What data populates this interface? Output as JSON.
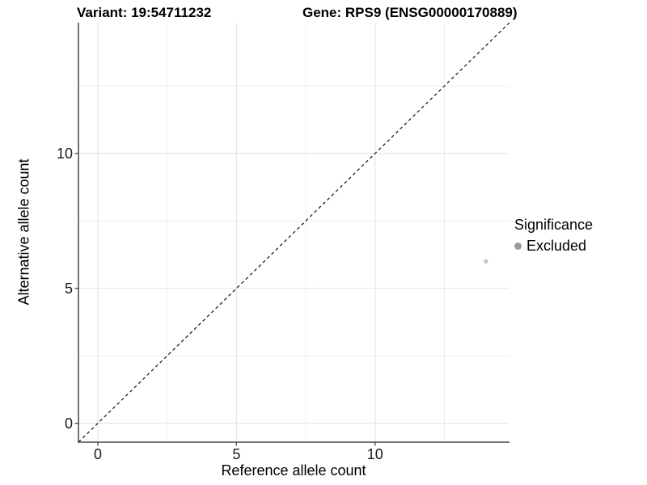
{
  "header": {
    "variant_title": "Variant: 19:54711232",
    "gene_title": "Gene: RPS9 (ENSG00000170889)"
  },
  "chart_data": {
    "type": "scatter",
    "title_left": "Variant: 19:54711232",
    "title_right": "Gene: RPS9 (ENSG00000170889)",
    "xlabel": "Reference allele count",
    "ylabel": "Alternative allele count",
    "xlim": [
      -0.7,
      14.85
    ],
    "ylim": [
      -0.7,
      14.85
    ],
    "x_ticks": [
      0,
      5,
      10
    ],
    "y_ticks": [
      0,
      5,
      10
    ],
    "x_minor_breaks": [
      2.5,
      7.5,
      12.5
    ],
    "y_minor_breaks": [
      2.5,
      7.5,
      12.5
    ],
    "grid": true,
    "points": [
      {
        "x": 14,
        "y": 6,
        "series": "Excluded",
        "color": "#c4c4c4",
        "radius": 2.6
      }
    ],
    "identity_line": {
      "from": [
        -0.7,
        -0.7
      ],
      "to": [
        14.85,
        14.85
      ],
      "style": "dashed",
      "color": "#111111"
    },
    "legend": {
      "title": "Significance",
      "position": "right",
      "items": [
        {
          "label": "Excluded",
          "color": "#9b9b9b"
        }
      ]
    },
    "colors": {
      "panel_background": "#ffffff",
      "major_grid": "#e3e3e3",
      "minor_grid": "#ededed",
      "axis_line": "#464646",
      "tick_mark": "#464646",
      "text": "#000000"
    }
  }
}
